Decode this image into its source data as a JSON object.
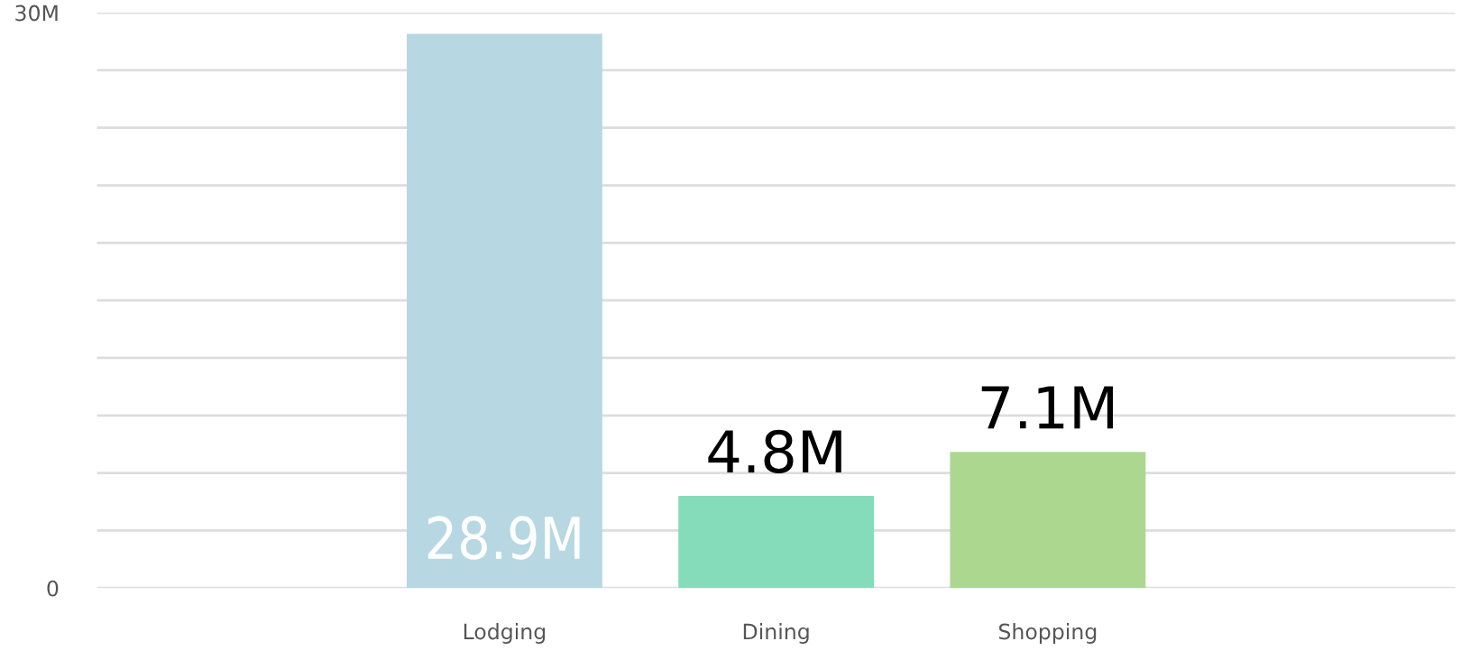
{
  "chart_data": {
    "type": "bar",
    "categories": [
      null,
      "Lodging",
      "Dining",
      "Shopping",
      null
    ],
    "values": [
      null,
      28.9,
      4.8,
      7.1,
      null
    ],
    "colors": [
      "#b7d8e2",
      "#b7d8e2",
      "#84dcbb",
      "#acd78f",
      "#acd78f"
    ],
    "value_labels": [
      null,
      "28.9M",
      "4.8M",
      "7.1M",
      null
    ],
    "ylim": [
      0,
      30
    ],
    "yticks": [
      0,
      {
        "value": 3,
        "label": null
      },
      {
        "value": 6,
        "label": null
      },
      {
        "value": 9,
        "label": null
      },
      {
        "value": 12,
        "label": null
      },
      {
        "value": 15,
        "label": null
      },
      {
        "value": 18,
        "label": null
      },
      {
        "value": 21,
        "label": null
      },
      {
        "value": 24,
        "label": null
      },
      {
        "value": 27,
        "label": null
      },
      {
        "value": 30,
        "label": "30M"
      }
    ],
    "grid": "y"
  }
}
